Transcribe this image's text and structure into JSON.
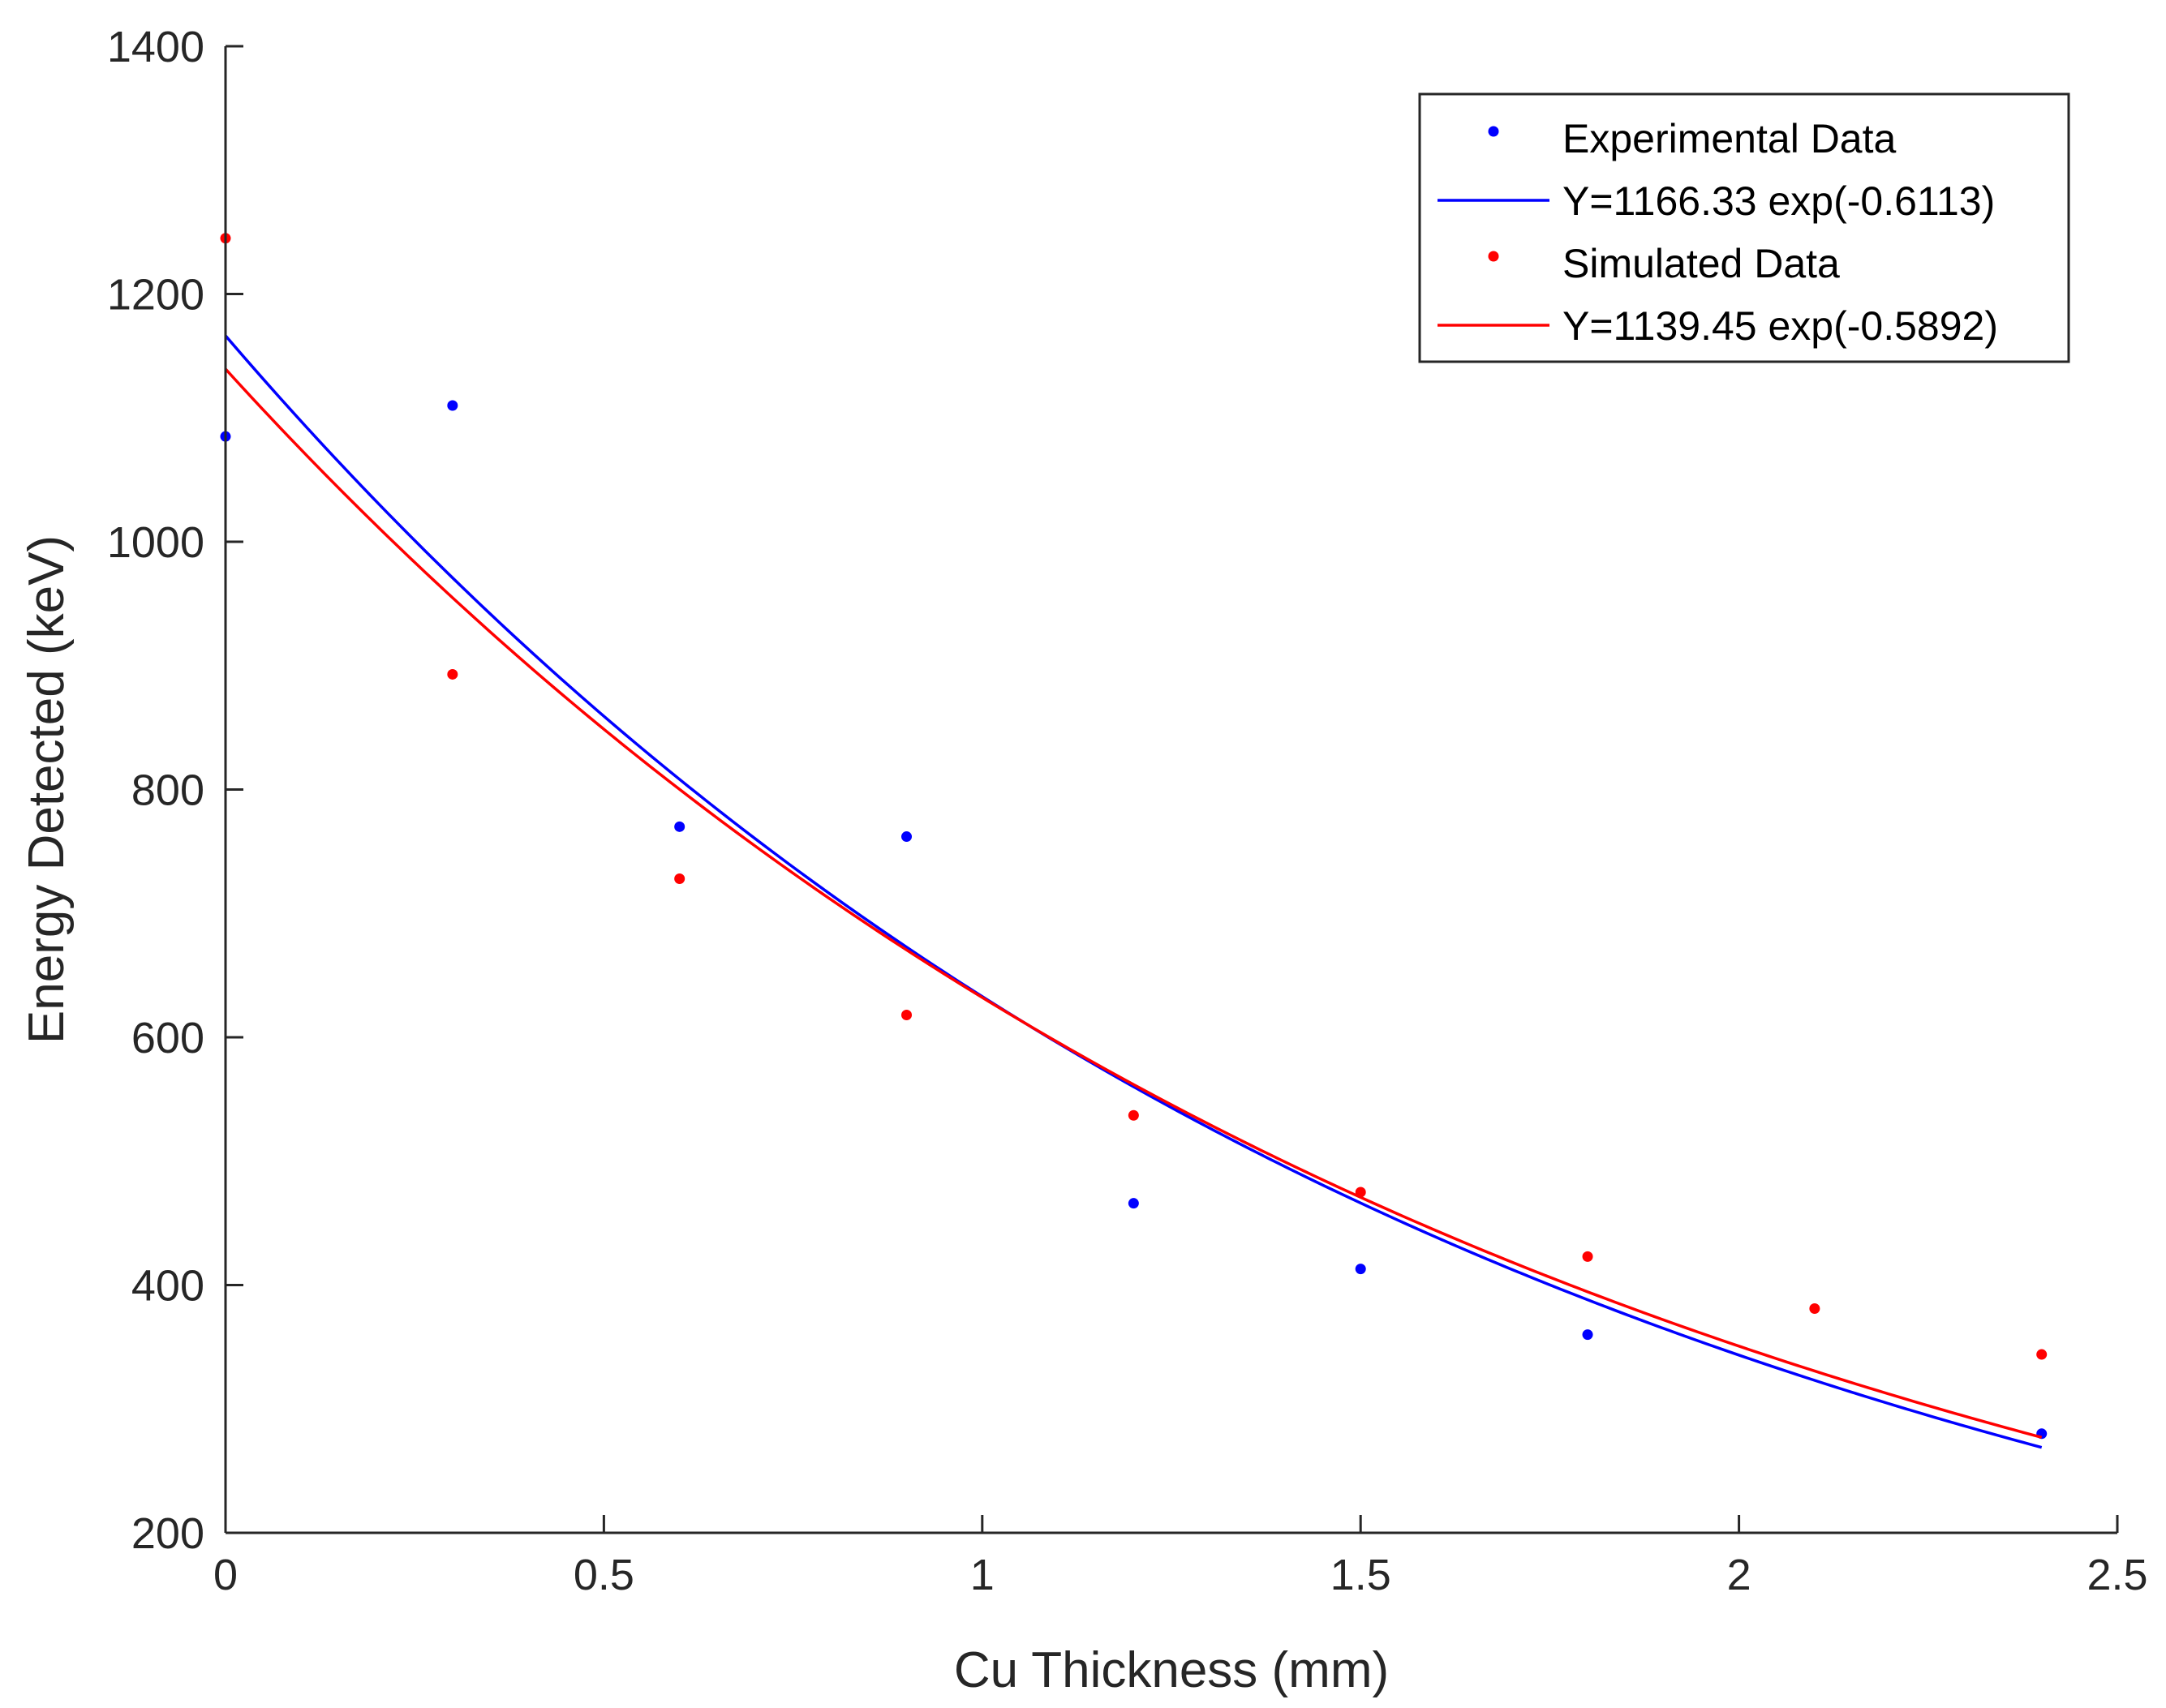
{
  "chart_data": {
    "type": "scatter",
    "title": "",
    "xlabel": "Cu Thickness (mm)",
    "ylabel": "Energy Detected (keV)",
    "xlim": [
      0,
      2.5
    ],
    "ylim": [
      200,
      1400
    ],
    "xticks": [
      0,
      0.5,
      1,
      1.5,
      2,
      2.5
    ],
    "xtick_labels": [
      "0",
      "0.5",
      "1",
      "1.5",
      "2",
      "2.5"
    ],
    "yticks": [
      200,
      400,
      600,
      800,
      1000,
      1200,
      1400
    ],
    "ytick_labels": [
      "200",
      "400",
      "600",
      "800",
      "1000",
      "1200",
      "1400"
    ],
    "grid": false,
    "legend_position": "top-right",
    "series": [
      {
        "name": "Experimental Data",
        "kind": "points",
        "color": "#0000ff",
        "x": [
          0,
          0.3,
          0.6,
          0.9,
          1.2,
          1.5,
          1.8,
          2.4
        ],
        "y": [
          1085,
          1110,
          770,
          762,
          466,
          413,
          360,
          280
        ]
      },
      {
        "name": "Y=1166.33 exp(-0.6113)",
        "kind": "fit",
        "color": "#0000ff",
        "a": 1166.33,
        "b": 0.6113,
        "x_range": [
          0,
          2.4
        ]
      },
      {
        "name": "Simulated Data",
        "kind": "points",
        "color": "#ff0000",
        "x": [
          0,
          0.3,
          0.6,
          0.9,
          1.2,
          1.5,
          1.8,
          2.1,
          2.4
        ],
        "y": [
          1245,
          893,
          728,
          618,
          537,
          475,
          423,
          381,
          344
        ]
      },
      {
        "name": "Y=1139.45 exp(-0.5892)",
        "kind": "fit",
        "color": "#ff0000",
        "a": 1139.45,
        "b": 0.5892,
        "x_range": [
          0,
          2.4
        ]
      }
    ]
  }
}
